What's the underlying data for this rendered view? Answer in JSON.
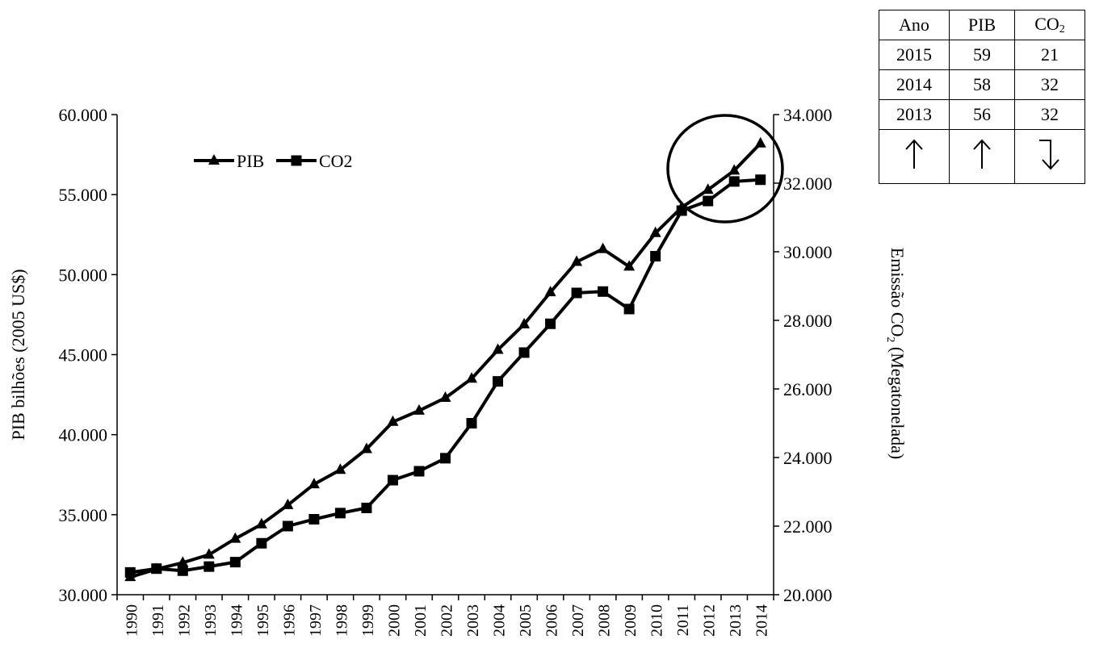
{
  "chart_data": {
    "type": "line",
    "x": [
      1990,
      1991,
      1992,
      1993,
      1994,
      1995,
      1996,
      1997,
      1998,
      1999,
      2000,
      2001,
      2002,
      2003,
      2004,
      2005,
      2006,
      2007,
      2008,
      2009,
      2010,
      2011,
      2012,
      2013,
      2014
    ],
    "series": [
      {
        "name": "PIB",
        "axis": "left",
        "marker": "triangle",
        "values": [
          31100,
          31600,
          32000,
          32500,
          33500,
          34400,
          35600,
          36900,
          37800,
          39100,
          40800,
          41500,
          42300,
          43500,
          45300,
          46900,
          48900,
          50800,
          51600,
          50500,
          52600,
          54200,
          55300,
          56500,
          58200
        ]
      },
      {
        "name": "CO2",
        "axis": "right",
        "marker": "square",
        "values": [
          20650,
          20760,
          20700,
          20820,
          20950,
          21500,
          22000,
          22200,
          22380,
          22530,
          23340,
          23600,
          23980,
          25000,
          26220,
          27060,
          27900,
          28800,
          28840,
          28330,
          29870,
          31200,
          31480,
          32050,
          32100
        ]
      }
    ],
    "y_left": {
      "label": "PIB bilhões (2005 US$)",
      "range": [
        30000,
        60000
      ],
      "ticks": [
        "30.000",
        "35.000",
        "40.000",
        "45.000",
        "50.000",
        "55.000",
        "60.000"
      ]
    },
    "y_right": {
      "label_main": "Emissão CO",
      "label_sub": "2",
      "label_tail": " (Megatonelada)",
      "range": [
        20000,
        34000
      ],
      "ticks": [
        "20.000",
        "22.000",
        "24.000",
        "26.000",
        "28.000",
        "30.000",
        "32.000",
        "34.000"
      ]
    },
    "x_ticks": [
      "1990",
      "1991",
      "1992",
      "1993",
      "1994",
      "1995",
      "1996",
      "1997",
      "1998",
      "1999",
      "2000",
      "2001",
      "2002",
      "2003",
      "2004",
      "2005",
      "2006",
      "2007",
      "2008",
      "2009",
      "2010",
      "2011",
      "2012",
      "2013",
      "2014"
    ],
    "legend": {
      "placement": "top-left",
      "entries": [
        "PIB",
        "CO2"
      ]
    },
    "grid": false,
    "annotation": "circle around 2011-2014"
  },
  "table": {
    "header": {
      "ano": "Ano",
      "pib": "PIB",
      "co2_main": "CO",
      "co2_sub": "2"
    },
    "rows": [
      {
        "ano": "2015",
        "pib": "59",
        "co2": "21"
      },
      {
        "ano": "2014",
        "pib": "58",
        "co2": "32"
      },
      {
        "ano": "2013",
        "pib": "56",
        "co2": "32"
      }
    ],
    "arrow_icons": [
      "up-arrow-icon",
      "up-arrow-icon",
      "down-hook-arrow-icon"
    ]
  }
}
